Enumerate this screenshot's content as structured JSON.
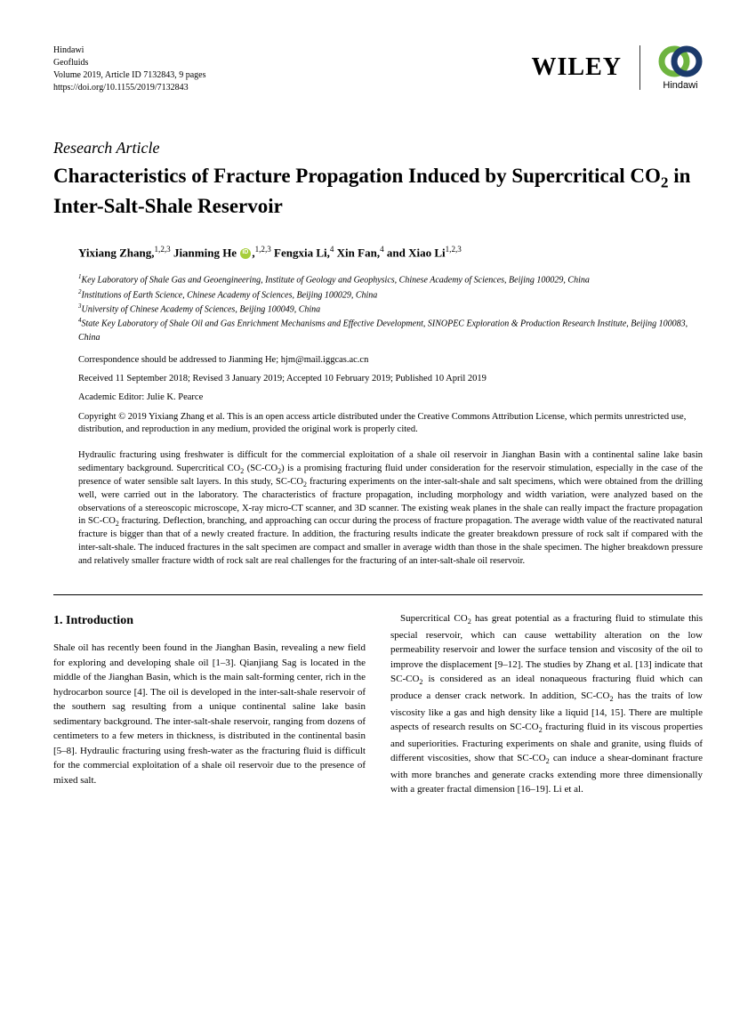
{
  "meta": {
    "line1": "Hindawi",
    "line2": "Geofluids",
    "line3": "Volume 2019, Article ID 7132843, 9 pages",
    "line4": "https://doi.org/10.1155/2019/7132843"
  },
  "logos": {
    "wiley": "WILEY",
    "hindawi": "Hindawi"
  },
  "article_type": "Research Article",
  "title_html": "Characteristics of Fracture Propagation Induced by Supercritical CO<sub>2</sub> in Inter-Salt-Shale Reservoir",
  "authors_html": "Yixiang Zhang,<sup>1,2,3</sup> Jianming He <span class='orcid'></span>,<sup>1,2,3</sup> Fengxia Li,<sup>4</sup> Xin Fan,<sup>4</sup> and Xiao Li<sup>1,2,3</sup>",
  "affiliations": [
    "<sup>1</sup>Key Laboratory of Shale Gas and Geoengineering, Institute of Geology and Geophysics, Chinese Academy of Sciences, Beijing 100029, China",
    "<sup>2</sup>Institutions of Earth Science, Chinese Academy of Sciences, Beijing 100029, China",
    "<sup>3</sup>University of Chinese Academy of Sciences, Beijing 100049, China",
    "<sup>4</sup>State Key Laboratory of Shale Oil and Gas Enrichment Mechanisms and Effective Development, SINOPEC Exploration & Production Research Institute, Beijing 100083, China"
  ],
  "correspondence": "Correspondence should be addressed to Jianming He; hjm@mail.iggcas.ac.cn",
  "dates": "Received 11 September 2018; Revised 3 January 2019; Accepted 10 February 2019; Published 10 April 2019",
  "editor": "Academic Editor: Julie K. Pearce",
  "copyright": "Copyright © 2019 Yixiang Zhang et al. This is an open access article distributed under the Creative Commons Attribution License, which permits unrestricted use, distribution, and reproduction in any medium, provided the original work is properly cited.",
  "abstract_html": "Hydraulic fracturing using freshwater is difficult for the commercial exploitation of a shale oil reservoir in Jianghan Basin with a continental saline lake basin sedimentary background. Supercritical CO<sub>2</sub> (SC-CO<sub>2</sub>) is a promising fracturing fluid under consideration for the reservoir stimulation, especially in the case of the presence of water sensible salt layers. In this study, SC-CO<sub>2</sub> fracturing experiments on the inter-salt-shale and salt specimens, which were obtained from the drilling well, were carried out in the laboratory. The characteristics of fracture propagation, including morphology and width variation, were analyzed based on the observations of a stereoscopic microscope, X-ray micro-CT scanner, and 3D scanner. The existing weak planes in the shale can really impact the fracture propagation in SC-CO<sub>2</sub> fracturing. Deflection, branching, and approaching can occur during the process of fracture propagation. The average width value of the reactivated natural fracture is bigger than that of a newly created fracture. In addition, the fracturing results indicate the greater breakdown pressure of rock salt if compared with the inter-salt-shale. The induced fractures in the salt specimen are compact and smaller in average width than those in the shale specimen. The higher breakdown pressure and relatively smaller fracture width of rock salt are real challenges for the fracturing of an inter-salt-shale oil reservoir.",
  "section1_title": "1. Introduction",
  "col1_html": "Shale oil has recently been found in the Jianghan Basin, revealing a new field for exploring and developing shale oil [1–3]. Qianjiang Sag is located in the middle of the Jianghan Basin, which is the main salt-forming center, rich in the hydrocarbon source [4]. The oil is developed in the inter-salt-shale reservoir of the southern sag resulting from a unique continental saline lake basin sedimentary background. The inter-salt-shale reservoir, ranging from dozens of centimeters to a few meters in thickness, is distributed in the continental basin [5–8]. Hydraulic fracturing using fresh-water as the fracturing fluid is difficult for the commercial exploitation of a shale oil reservoir due to the presence of mixed salt.",
  "col2_html": "&emsp;Supercritical CO<sub>2</sub> has great potential as a fracturing fluid to stimulate this special reservoir, which can cause wettability alteration on the low permeability reservoir and lower the surface tension and viscosity of the oil to improve the displacement [9–12]. The studies by Zhang et al. [13] indicate that SC-CO<sub>2</sub> is considered as an ideal nonaqueous fracturing fluid which can produce a denser crack network. In addition, SC-CO<sub>2</sub> has the traits of low viscosity like a gas and high density like a liquid [14, 15]. There are multiple aspects of research results on SC-CO<sub>2</sub> fracturing fluid in its viscous properties and superiorities. Fracturing experiments on shale and granite, using fluids of different viscosities, show that SC-CO<sub>2</sub> can induce a shear-dominant fracture with more branches and generate cracks extending more three dimensionally with a greater fractal dimension [16–19]. Li et al.",
  "colors": {
    "text": "#000000",
    "orcid_green": "#a6ce39",
    "hindawi_green": "#6eb43f",
    "hindawi_blue": "#1b3a6b"
  }
}
